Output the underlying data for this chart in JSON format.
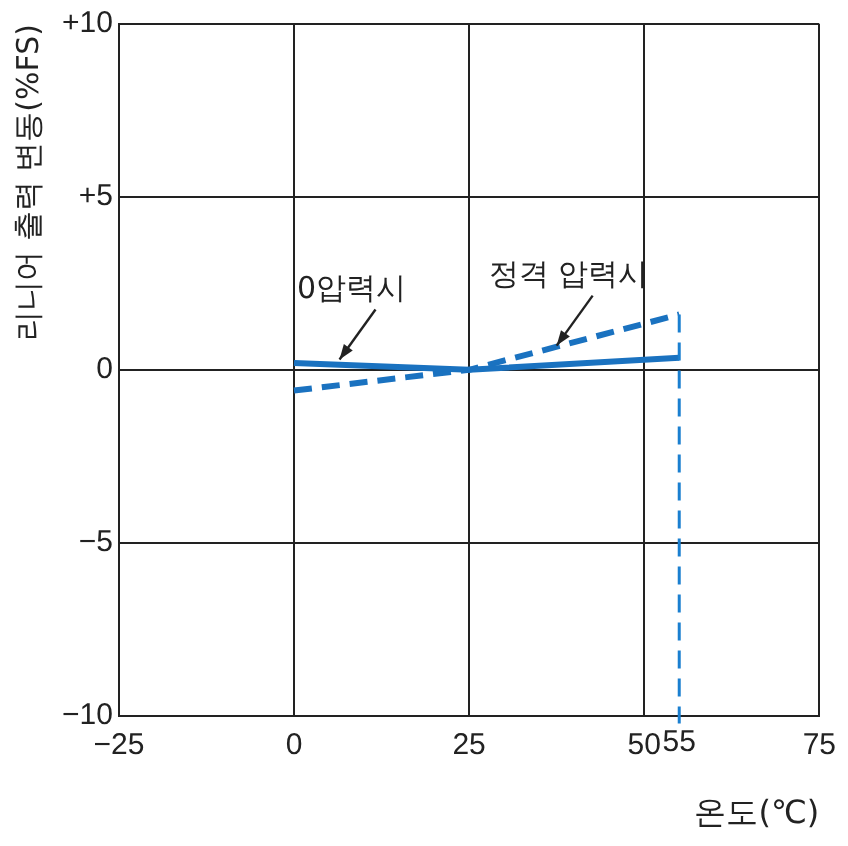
{
  "chart_data": {
    "type": "line",
    "xlabel": "온도(℃)",
    "ylabel": "리니어 출력 변동(%FS)",
    "x": [
      0,
      25,
      55
    ],
    "series": [
      {
        "color": "#1a72c0",
        "values": [
          0.2,
          0,
          0.35
        ],
        "line_style": "solid"
      },
      {
        "color": "#1a72c0",
        "values": [
          -0.6,
          0,
          1.6
        ],
        "line_style": "dashed"
      }
    ],
    "xlim": [
      -25,
      75
    ],
    "xticks": [
      {
        "value": -25,
        "label": "−25"
      },
      0,
      25,
      50,
      75
    ],
    "ylim": [
      -10,
      10
    ],
    "yticks": [
      {
        "value": -10,
        "label": "−10"
      },
      {
        "value": -5,
        "label": "−5"
      },
      0,
      {
        "value": 5,
        "label": "+5"
      },
      {
        "value": 10,
        "label": "+10"
      }
    ],
    "grid": true,
    "legend": false,
    "marker": "none",
    "ref_lines": [
      {
        "axis": "x",
        "value": 55,
        "label": "55",
        "color": "#1a7fd0",
        "line_style": "dashed"
      }
    ],
    "annotations": [
      {
        "text": "0압력시",
        "x": 6.5,
        "y": 0.3
      },
      {
        "text": "정격 압력시",
        "x": 37.5,
        "y": 0.7
      }
    ]
  }
}
